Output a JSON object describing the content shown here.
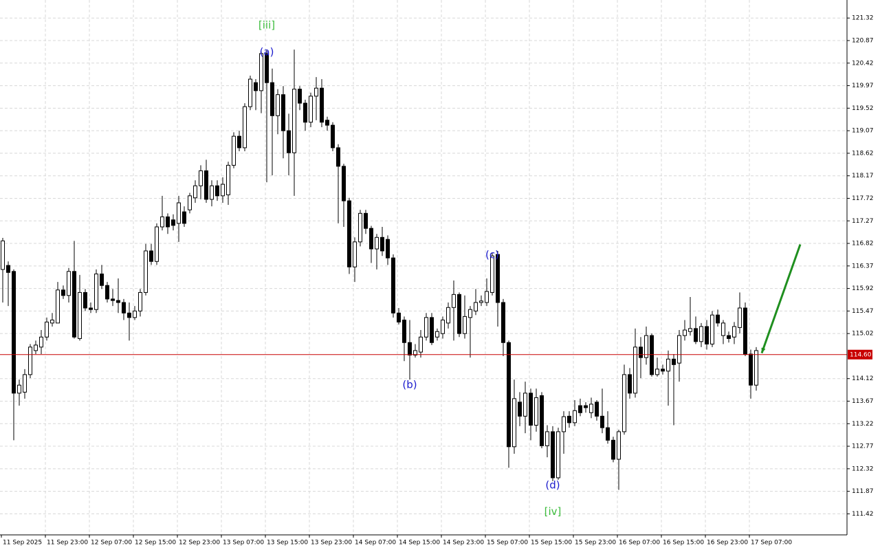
{
  "chart_data": {
    "type": "candlestick",
    "categories": [
      "11 Sep 2025",
      null,
      null,
      null,
      null,
      null,
      null,
      null,
      "11 Sep 23:00",
      null,
      null,
      null,
      null,
      null,
      null,
      null,
      "12 Sep 07:00",
      null,
      null,
      null,
      null,
      null,
      null,
      null,
      "12 Sep 15:00",
      null,
      null,
      null,
      null,
      null,
      null,
      null,
      "12 Sep 23:00",
      null,
      null,
      null,
      null,
      null,
      null,
      null,
      "13 Sep 07:00",
      null,
      null,
      null,
      null,
      null,
      null,
      null,
      "13 Sep 15:00",
      null,
      null,
      null,
      null,
      null,
      null,
      null,
      "13 Sep 23:00",
      null,
      null,
      null,
      null,
      null,
      null,
      null,
      "14 Sep 07:00",
      null,
      null,
      null,
      null,
      null,
      null,
      null,
      "14 Sep 15:00",
      null,
      null,
      null,
      null,
      null,
      null,
      null,
      "14 Sep 23:00",
      null,
      null,
      null,
      null,
      null,
      null,
      null,
      "15 Sep 07:00",
      null,
      null,
      null,
      null,
      null,
      null,
      null,
      "15 Sep 15:00",
      null,
      null,
      null,
      null,
      null,
      null,
      null,
      "15 Sep 23:00",
      null,
      null,
      null,
      null,
      null,
      null,
      null,
      "16 Sep 07:00",
      null,
      null,
      null,
      null,
      null,
      null,
      null,
      "16 Sep 15:00",
      null,
      null,
      null,
      null,
      null,
      null,
      null,
      "16 Sep 23:00",
      null,
      null,
      null,
      null,
      null,
      null,
      null,
      "17 Sep 07:00",
      null
    ],
    "open": [
      116.3,
      116.38,
      116.26,
      113.83,
      113.85,
      114.2,
      114.68,
      114.75,
      114.95,
      115.23,
      115.23,
      115.89,
      115.78,
      116.26,
      114.92,
      115.84,
      115.53,
      115.5,
      116.21,
      115.98,
      115.71,
      115.68,
      115.64,
      115.43,
      115.34,
      115.47,
      115.84,
      116.67,
      116.46,
      117.15,
      117.35,
      117.29,
      117.22,
      117.45,
      117.49,
      117.73,
      117.97,
      118.27,
      117.7,
      117.97,
      117.77,
      117.79,
      118.38,
      118.96,
      118.73,
      119.55,
      120.03,
      119.87,
      120.61,
      120.03,
      119.37,
      119.79,
      119.07,
      118.63,
      119.9,
      119.62,
      119.24,
      119.76,
      119.92,
      119.28,
      119.18,
      118.73,
      118.36,
      117.67,
      116.35,
      116.85,
      117.42,
      117.12,
      116.71,
      116.94,
      116.9,
      116.53,
      115.43,
      115.29,
      114.84,
      114.59,
      114.65,
      114.95,
      115.34,
      114.95,
      115.02,
      115.23,
      115.54,
      115.8,
      115.02,
      115.34,
      115.47,
      115.64,
      115.64,
      115.84,
      116.6,
      115.64,
      114.84,
      112.76,
      113.65,
      113.37,
      113.83,
      113.19,
      113.78,
      112.78,
      113.06,
      112.14,
      113.06,
      113.37,
      113.24,
      113.58,
      113.58,
      113.44,
      113.65,
      113.37,
      113.14,
      112.89,
      112.51,
      113.06,
      114.2,
      113.83,
      114.75,
      114.54,
      114.98,
      114.2,
      114.31,
      114.27,
      114.51,
      114.43,
      114.98,
      115.06,
      115.12,
      114.86,
      115.16,
      114.81,
      115.39,
      114.98,
      114.98,
      114.95,
      115.14,
      115.53,
      114.61,
      113.99
    ],
    "high": [
      116.93,
      116.46,
      116.3,
      114.1,
      114.31,
      114.81,
      114.88,
      115.09,
      115.34,
      115.43,
      116.05,
      115.98,
      116.33,
      116.87,
      116.19,
      115.91,
      115.64,
      116.3,
      116.39,
      116.05,
      115.91,
      116.12,
      115.71,
      115.64,
      115.57,
      115.91,
      116.81,
      116.81,
      117.22,
      117.77,
      117.42,
      117.4,
      117.77,
      117.56,
      117.83,
      118.08,
      118.38,
      118.49,
      118.08,
      118.08,
      118.14,
      118.45,
      119.04,
      119.07,
      119.62,
      120.17,
      120.1,
      120.65,
      120.69,
      120.31,
      119.9,
      119.96,
      119.41,
      120.69,
      119.96,
      119.69,
      119.83,
      120.14,
      120.1,
      119.35,
      119.24,
      118.8,
      118.41,
      117.73,
      116.94,
      117.49,
      117.49,
      117.17,
      117.01,
      117.15,
      116.98,
      116.6,
      115.53,
      115.36,
      115.29,
      114.81,
      115.09,
      115.43,
      115.43,
      115.12,
      115.36,
      115.64,
      116.08,
      115.84,
      115.78,
      115.57,
      115.91,
      115.78,
      116.12,
      116.63,
      116.67,
      115.71,
      114.88,
      114.1,
      113.85,
      114.06,
      113.92,
      113.92,
      113.85,
      113.19,
      113.17,
      113.14,
      113.47,
      113.47,
      113.69,
      113.72,
      113.65,
      113.74,
      113.69,
      113.92,
      113.47,
      112.96,
      113.1,
      114.4,
      114.33,
      115.12,
      114.95,
      115.16,
      115.02,
      114.54,
      114.4,
      114.68,
      114.61,
      115.09,
      115.29,
      115.75,
      115.36,
      115.23,
      115.29,
      115.47,
      115.5,
      115.29,
      115.06,
      115.25,
      115.84,
      115.64,
      114.7,
      114.75
    ],
    "low": [
      115.64,
      115.57,
      112.89,
      113.58,
      113.72,
      114.13,
      114.61,
      114.61,
      114.88,
      115.16,
      115.23,
      115.71,
      115.64,
      114.92,
      114.88,
      115.47,
      115.43,
      115.43,
      115.91,
      115.64,
      115.57,
      115.43,
      115.29,
      114.88,
      115.29,
      115.36,
      115.78,
      116.39,
      116.39,
      117.08,
      117.01,
      117.08,
      116.85,
      117.15,
      117.42,
      117.63,
      117.7,
      117.63,
      117.56,
      117.67,
      117.63,
      117.59,
      118.32,
      118.66,
      118.66,
      119.48,
      119.48,
      119.42,
      118.04,
      118.18,
      119.0,
      118.52,
      118.18,
      117.77,
      119.48,
      119.07,
      119.14,
      119.28,
      119.14,
      119.07,
      118.66,
      117.22,
      117.15,
      116.21,
      116.05,
      116.76,
      117.01,
      116.43,
      116.3,
      116.57,
      116.39,
      115.34,
      115.2,
      114.47,
      114.1,
      114.54,
      114.54,
      114.88,
      114.79,
      114.88,
      114.92,
      115.12,
      114.88,
      114.95,
      114.92,
      114.54,
      115.39,
      115.57,
      115.57,
      115.78,
      115.16,
      114.57,
      112.34,
      112.62,
      113.17,
      113.03,
      112.89,
      113.06,
      112.73,
      112.55,
      112.07,
      112.1,
      112.62,
      113.14,
      113.17,
      113.37,
      113.44,
      113.33,
      113.28,
      113.03,
      112.82,
      112.45,
      111.9,
      113.0,
      113.72,
      113.74,
      114.13,
      114.4,
      114.16,
      114.16,
      114.2,
      113.58,
      113.19,
      114.06,
      114.88,
      114.98,
      114.81,
      114.75,
      114.7,
      114.75,
      115.16,
      114.81,
      114.84,
      114.81,
      115.02,
      114.57,
      113.72,
      113.88
    ],
    "close": [
      116.87,
      116.24,
      113.83,
      113.99,
      114.2,
      114.75,
      114.79,
      114.95,
      115.25,
      115.29,
      115.89,
      115.78,
      116.26,
      114.95,
      115.84,
      115.53,
      115.5,
      116.21,
      115.98,
      115.71,
      115.68,
      115.64,
      115.43,
      115.34,
      115.47,
      115.84,
      116.67,
      116.46,
      117.15,
      117.35,
      117.15,
      117.18,
      117.63,
      117.22,
      117.77,
      117.97,
      118.27,
      117.7,
      117.97,
      117.77,
      118.0,
      118.38,
      118.96,
      118.73,
      119.55,
      120.1,
      119.87,
      120.61,
      120.03,
      119.37,
      119.79,
      119.07,
      118.63,
      119.9,
      119.62,
      119.24,
      119.76,
      119.92,
      119.24,
      119.18,
      118.73,
      118.36,
      117.67,
      116.35,
      116.85,
      117.42,
      117.12,
      116.71,
      116.94,
      116.67,
      116.53,
      115.43,
      115.25,
      114.84,
      114.59,
      114.68,
      114.95,
      115.34,
      114.84,
      115.06,
      115.29,
      115.54,
      115.8,
      115.02,
      115.36,
      115.5,
      115.64,
      115.67,
      115.86,
      116.57,
      115.64,
      114.84,
      112.76,
      113.72,
      113.37,
      113.83,
      113.19,
      113.74,
      112.78,
      113.06,
      112.14,
      113.06,
      113.36,
      113.24,
      113.48,
      113.44,
      113.54,
      113.61,
      113.37,
      113.14,
      112.89,
      112.51,
      113.06,
      114.2,
      113.83,
      114.75,
      114.54,
      114.98,
      114.2,
      114.31,
      114.27,
      114.51,
      114.4,
      114.98,
      115.09,
      115.12,
      114.86,
      115.16,
      114.81,
      115.39,
      115.23,
      115.23,
      114.92,
      115.16,
      115.53,
      114.61,
      113.99,
      114.68
    ],
    "ylim": [
      111.0,
      121.68
    ],
    "yticks": [
      121.32,
      120.87,
      120.42,
      119.97,
      119.52,
      119.07,
      118.62,
      118.17,
      117.72,
      117.27,
      116.82,
      116.37,
      115.92,
      115.47,
      115.02,
      114.12,
      113.67,
      113.22,
      112.77,
      112.32,
      111.87,
      111.42
    ],
    "grid": true,
    "current_price": {
      "value": 114.6,
      "label": "114.60",
      "color": "#c80000"
    },
    "forecast": {
      "x": [
        138,
        145
      ],
      "values": [
        114.63,
        116.8
      ],
      "color": "#1f8f1f"
    },
    "annotations": [
      {
        "text": "[iii]",
        "x": 48,
        "y": 121.17,
        "color": "#3cbc3c"
      },
      {
        "text": "(a)",
        "x": 48,
        "y": 120.64,
        "color": "#1a1acc"
      },
      {
        "text": "(b)",
        "x": 74,
        "y": 113.99,
        "color": "#1a1acc"
      },
      {
        "text": "(c)",
        "x": 89,
        "y": 116.59,
        "color": "#1a1acc"
      },
      {
        "text": "(d)",
        "x": 100,
        "y": 111.99,
        "color": "#1a1acc"
      },
      {
        "text": "[iv]",
        "x": 100,
        "y": 111.46,
        "color": "#3cbc3c"
      }
    ]
  }
}
